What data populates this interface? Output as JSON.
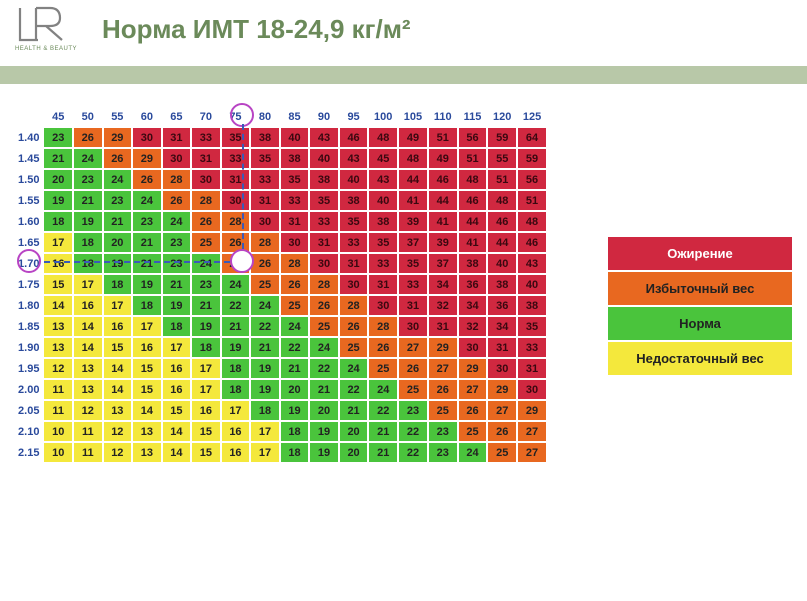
{
  "logo_subtitle": "HEALTH & BEAUTY",
  "title": "Норма ИМТ 18-24,9 кг/м²",
  "colors": {
    "underweight": "#f4e83c",
    "normal": "#4ac43c",
    "overweight": "#e86820",
    "obese": "#d02840",
    "header_text": "#2a4a9c",
    "title_text": "#6b8a5a",
    "divider": "#b8c8a8",
    "circle": "#b844c4"
  },
  "weights": [
    "45",
    "50",
    "55",
    "60",
    "65",
    "70",
    "75",
    "80",
    "85",
    "90",
    "95",
    "100",
    "105",
    "110",
    "115",
    "120",
    "125"
  ],
  "heights": [
    "1.40",
    "1.45",
    "1.50",
    "1.55",
    "1.60",
    "1.65",
    "1.70",
    "1.75",
    "1.80",
    "1.85",
    "1.90",
    "1.95",
    "2.00",
    "2.05",
    "2.10",
    "2.15"
  ],
  "grid": [
    [
      23,
      26,
      29,
      30,
      31,
      33,
      35,
      38,
      40,
      43,
      46,
      48,
      49,
      51,
      56,
      59,
      64
    ],
    [
      21,
      24,
      26,
      29,
      30,
      31,
      33,
      35,
      38,
      40,
      43,
      45,
      48,
      49,
      51,
      55,
      59
    ],
    [
      20,
      23,
      24,
      26,
      28,
      30,
      31,
      33,
      35,
      38,
      40,
      43,
      44,
      46,
      48,
      51,
      56
    ],
    [
      19,
      21,
      23,
      24,
      26,
      28,
      30,
      31,
      33,
      35,
      38,
      40,
      41,
      44,
      46,
      48,
      51
    ],
    [
      18,
      19,
      21,
      23,
      24,
      26,
      28,
      30,
      31,
      33,
      35,
      38,
      39,
      41,
      44,
      46,
      48
    ],
    [
      17,
      18,
      20,
      21,
      23,
      25,
      26,
      28,
      30,
      31,
      33,
      35,
      37,
      39,
      41,
      44,
      46
    ],
    [
      16,
      18,
      19,
      21,
      23,
      24,
      25,
      26,
      28,
      30,
      31,
      33,
      35,
      37,
      38,
      40,
      43
    ],
    [
      15,
      17,
      18,
      19,
      21,
      23,
      24,
      25,
      26,
      28,
      30,
      31,
      33,
      34,
      36,
      38,
      40
    ],
    [
      14,
      16,
      17,
      18,
      19,
      21,
      22,
      24,
      25,
      26,
      28,
      30,
      31,
      32,
      34,
      36,
      38
    ],
    [
      13,
      14,
      16,
      17,
      18,
      19,
      21,
      22,
      24,
      25,
      26,
      28,
      30,
      31,
      32,
      34,
      35
    ],
    [
      13,
      14,
      15,
      16,
      17,
      18,
      19,
      21,
      22,
      24,
      25,
      26,
      27,
      29,
      30,
      31,
      33
    ],
    [
      12,
      13,
      14,
      15,
      16,
      17,
      18,
      19,
      21,
      22,
      24,
      25,
      26,
      27,
      29,
      30,
      31
    ],
    [
      11,
      13,
      14,
      15,
      16,
      17,
      18,
      19,
      20,
      21,
      22,
      24,
      25,
      26,
      27,
      29,
      30
    ],
    [
      11,
      12,
      13,
      14,
      15,
      16,
      17,
      18,
      19,
      20,
      21,
      22,
      23,
      25,
      26,
      27,
      29
    ],
    [
      10,
      11,
      12,
      13,
      14,
      15,
      16,
      17,
      18,
      19,
      20,
      21,
      22,
      23,
      25,
      26,
      27
    ],
    [
      10,
      11,
      12,
      13,
      14,
      15,
      16,
      17,
      18,
      19,
      20,
      21,
      22,
      23,
      24,
      25,
      27
    ]
  ],
  "legend": [
    {
      "label": "Ожирение",
      "color": "#d02840",
      "text_color": "#fff"
    },
    {
      "label": "Избыточный вес",
      "color": "#e86820",
      "text_color": "#222"
    },
    {
      "label": "Норма",
      "color": "#4ac43c",
      "text_color": "#222"
    },
    {
      "label": "Недостаточный вес",
      "color": "#f4e83c",
      "text_color": "#222"
    }
  ],
  "highlight": {
    "height_idx": 6,
    "weight_idx": 6
  },
  "thresholds": {
    "under_max": 17,
    "normal_max": 24,
    "over_max": 29
  }
}
